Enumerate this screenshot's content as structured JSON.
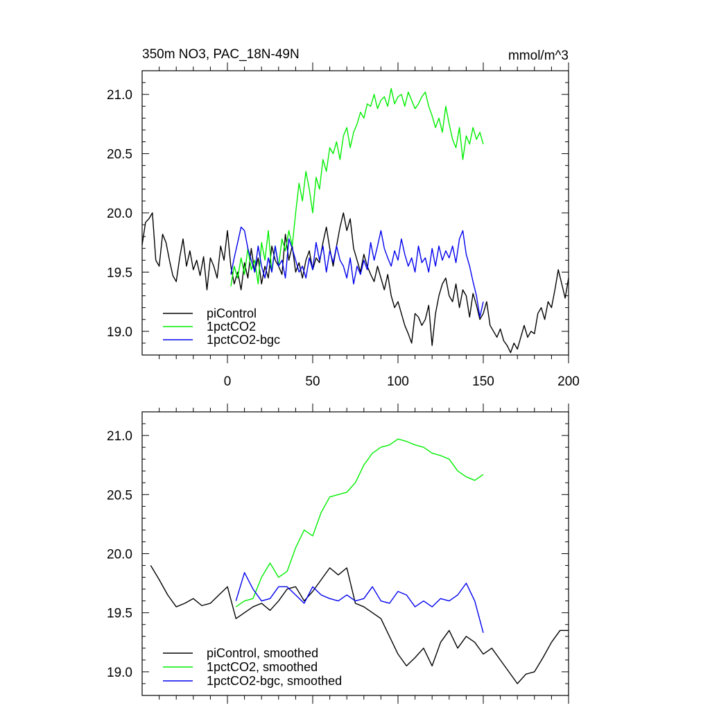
{
  "chart_data": [
    {
      "type": "line",
      "title": "350m NO3, PAC_18N-49N",
      "title_right": "mmol/m^3",
      "xlabel": "",
      "ylabel": "",
      "xlim": [
        -50,
        200
      ],
      "ylim": [
        18.8,
        21.2
      ],
      "x_ticks": [
        0,
        50,
        100,
        150,
        200
      ],
      "x_tick_labels": [
        "0",
        "50",
        "100",
        "150",
        "200"
      ],
      "y_ticks": [
        19.0,
        19.5,
        20.0,
        20.5,
        21.0
      ],
      "y_tick_labels": [
        "19.0",
        "19.5",
        "20.0",
        "20.5",
        "21.0"
      ],
      "legend_position": "bottom-left",
      "series": [
        {
          "name": "piControl",
          "color": "#000000",
          "x": [
            -50,
            -48,
            -46,
            -44,
            -42,
            -40,
            -38,
            -36,
            -34,
            -32,
            -30,
            -28,
            -26,
            -24,
            -22,
            -20,
            -18,
            -16,
            -14,
            -12,
            -10,
            -8,
            -6,
            -4,
            -2,
            0,
            2,
            4,
            6,
            8,
            10,
            12,
            14,
            16,
            18,
            20,
            22,
            24,
            26,
            28,
            30,
            32,
            34,
            36,
            38,
            40,
            42,
            44,
            46,
            48,
            50,
            52,
            54,
            56,
            58,
            60,
            62,
            64,
            66,
            68,
            70,
            72,
            74,
            76,
            78,
            80,
            82,
            84,
            86,
            88,
            90,
            92,
            94,
            96,
            98,
            100,
            102,
            104,
            106,
            108,
            110,
            112,
            114,
            116,
            118,
            120,
            122,
            124,
            126,
            128,
            130,
            132,
            134,
            136,
            138,
            140,
            142,
            144,
            146,
            148,
            150,
            152,
            154,
            156,
            158,
            160,
            162,
            164,
            166,
            168,
            170,
            172,
            174,
            176,
            178,
            180,
            182,
            184,
            186,
            188,
            190,
            192,
            194,
            196,
            198,
            200
          ],
          "values": [
            19.73,
            19.92,
            19.95,
            20.0,
            19.6,
            19.55,
            19.82,
            19.75,
            19.6,
            19.47,
            19.42,
            19.62,
            19.78,
            19.55,
            19.68,
            19.52,
            19.6,
            19.47,
            19.63,
            19.35,
            19.62,
            19.55,
            19.45,
            19.72,
            19.6,
            19.85,
            19.55,
            19.4,
            19.5,
            19.35,
            19.58,
            19.45,
            19.7,
            19.5,
            19.62,
            19.4,
            19.55,
            19.45,
            19.72,
            19.6,
            19.55,
            19.48,
            19.82,
            19.6,
            19.72,
            19.5,
            19.58,
            19.45,
            19.6,
            19.68,
            19.52,
            19.62,
            19.58,
            19.75,
            19.88,
            19.7,
            19.55,
            19.72,
            19.88,
            20.0,
            19.85,
            19.95,
            19.7,
            19.6,
            19.5,
            19.65,
            19.55,
            19.48,
            19.42,
            19.55,
            19.45,
            19.35,
            19.48,
            19.3,
            19.2,
            19.25,
            19.15,
            19.05,
            18.98,
            18.9,
            19.15,
            19.12,
            19.05,
            19.1,
            19.22,
            18.88,
            19.15,
            19.3,
            19.4,
            19.45,
            19.3,
            19.25,
            19.4,
            19.2,
            19.35,
            19.3,
            19.12,
            19.32,
            19.22,
            19.1,
            19.15,
            19.25,
            19.05,
            19.0,
            18.95,
            19.02,
            18.92,
            18.88,
            18.82,
            18.9,
            18.85,
            18.95,
            19.05,
            18.95,
            19.0,
            18.98,
            19.15,
            19.2,
            19.1,
            19.25,
            19.2,
            19.35,
            19.52,
            19.4,
            19.28,
            19.45
          ]
        },
        {
          "name": "1pctCO2",
          "color": "#00ee00",
          "x": [
            2,
            4,
            6,
            8,
            10,
            12,
            14,
            16,
            18,
            20,
            22,
            24,
            26,
            28,
            30,
            32,
            34,
            36,
            38,
            40,
            42,
            44,
            46,
            48,
            50,
            52,
            54,
            56,
            58,
            60,
            62,
            64,
            66,
            68,
            70,
            72,
            74,
            76,
            78,
            80,
            82,
            84,
            86,
            88,
            90,
            92,
            94,
            96,
            98,
            100,
            102,
            104,
            106,
            108,
            110,
            112,
            114,
            116,
            118,
            120,
            122,
            124,
            126,
            128,
            130,
            132,
            134,
            136,
            138,
            140,
            142,
            144,
            146,
            148,
            150
          ],
          "values": [
            19.38,
            19.55,
            19.45,
            19.62,
            19.48,
            19.7,
            19.52,
            19.6,
            19.4,
            19.75,
            19.6,
            19.85,
            19.5,
            19.72,
            19.55,
            19.78,
            19.68,
            19.85,
            19.72,
            20.0,
            20.25,
            20.1,
            20.35,
            20.2,
            20.0,
            20.3,
            20.2,
            20.45,
            20.35,
            20.55,
            20.5,
            20.6,
            20.45,
            20.65,
            20.72,
            20.55,
            20.68,
            20.75,
            20.85,
            20.8,
            20.92,
            20.9,
            21.0,
            20.88,
            20.95,
            20.98,
            20.9,
            21.05,
            20.92,
            20.98,
            21.0,
            20.9,
            21.02,
            20.95,
            20.88,
            20.92,
            20.98,
            21.02,
            20.9,
            20.82,
            20.72,
            20.8,
            20.68,
            20.9,
            20.75,
            20.62,
            20.55,
            20.72,
            20.45,
            20.65,
            20.58,
            20.72,
            20.62,
            20.68,
            20.58
          ]
        },
        {
          "name": "1pctCO2-bgc",
          "color": "#0000ee",
          "x": [
            2,
            4,
            6,
            8,
            10,
            12,
            14,
            16,
            18,
            20,
            22,
            24,
            26,
            28,
            30,
            32,
            34,
            36,
            38,
            40,
            42,
            44,
            46,
            48,
            50,
            52,
            54,
            56,
            58,
            60,
            62,
            64,
            66,
            68,
            70,
            72,
            74,
            76,
            78,
            80,
            82,
            84,
            86,
            88,
            90,
            92,
            94,
            96,
            98,
            100,
            102,
            104,
            106,
            108,
            110,
            112,
            114,
            116,
            118,
            120,
            122,
            124,
            126,
            128,
            130,
            132,
            134,
            136,
            138,
            140,
            142,
            144,
            146,
            148,
            150
          ],
          "values": [
            19.48,
            19.62,
            19.75,
            19.88,
            19.85,
            19.7,
            19.6,
            19.5,
            19.72,
            19.55,
            19.45,
            19.62,
            19.5,
            19.72,
            19.55,
            19.6,
            19.45,
            19.78,
            19.7,
            19.6,
            19.5,
            19.55,
            19.45,
            19.62,
            19.52,
            19.75,
            19.6,
            19.72,
            19.5,
            19.68,
            19.58,
            19.72,
            19.6,
            19.55,
            19.45,
            19.62,
            19.4,
            19.55,
            19.48,
            19.6,
            19.52,
            19.75,
            19.6,
            19.72,
            19.85,
            19.7,
            19.62,
            19.55,
            19.68,
            19.6,
            19.78,
            19.65,
            19.55,
            19.62,
            19.5,
            19.72,
            19.58,
            19.62,
            19.5,
            19.7,
            19.55,
            19.72,
            19.6,
            19.68,
            19.62,
            19.72,
            19.58,
            19.78,
            19.85,
            19.65,
            19.55,
            19.42,
            19.3,
            19.12,
            19.25
          ]
        }
      ]
    },
    {
      "type": "line",
      "title": "",
      "xlabel": "",
      "ylabel": "",
      "xlim": [
        -50,
        200
      ],
      "ylim": [
        18.8,
        21.2
      ],
      "y_ticks": [
        19.0,
        19.5,
        20.0,
        20.5,
        21.0
      ],
      "y_tick_labels": [
        "19.0",
        "19.5",
        "20.0",
        "20.5",
        "21.0"
      ],
      "legend_position": "bottom-left",
      "series": [
        {
          "name": "piControl, smoothed",
          "color": "#000000",
          "x": [
            -45,
            -40,
            -35,
            -30,
            -25,
            -20,
            -15,
            -10,
            -5,
            0,
            5,
            10,
            15,
            20,
            25,
            30,
            35,
            40,
            45,
            50,
            55,
            60,
            65,
            70,
            75,
            80,
            85,
            90,
            95,
            100,
            105,
            110,
            115,
            120,
            125,
            130,
            135,
            140,
            145,
            150,
            155,
            160,
            165,
            170,
            175,
            180,
            185,
            190,
            195,
            200
          ],
          "values": [
            19.9,
            19.78,
            19.65,
            19.55,
            19.58,
            19.62,
            19.56,
            19.58,
            19.65,
            19.72,
            19.45,
            19.5,
            19.55,
            19.58,
            19.52,
            19.6,
            19.7,
            19.72,
            19.6,
            19.68,
            19.78,
            19.88,
            19.82,
            19.88,
            19.58,
            19.55,
            19.5,
            19.45,
            19.3,
            19.15,
            19.05,
            19.12,
            19.2,
            19.05,
            19.25,
            19.35,
            19.2,
            19.3,
            19.25,
            19.15,
            19.2,
            19.1,
            19.0,
            18.9,
            18.98,
            19.0,
            19.12,
            19.25,
            19.35,
            19.35
          ]
        },
        {
          "name": "1pctCO2, smoothed",
          "color": "#00ee00",
          "x": [
            5,
            10,
            15,
            20,
            25,
            30,
            35,
            40,
            45,
            50,
            55,
            60,
            65,
            70,
            75,
            80,
            85,
            90,
            95,
            100,
            105,
            110,
            115,
            120,
            125,
            130,
            135,
            140,
            145,
            150
          ],
          "values": [
            19.55,
            19.6,
            19.62,
            19.8,
            19.92,
            19.8,
            19.85,
            20.05,
            20.2,
            20.15,
            20.35,
            20.48,
            20.5,
            20.52,
            20.6,
            20.75,
            20.85,
            20.9,
            20.92,
            20.97,
            20.95,
            20.92,
            20.9,
            20.85,
            20.83,
            20.8,
            20.7,
            20.65,
            20.62,
            20.67
          ]
        },
        {
          "name": "1pctCO2-bgc, smoothed",
          "color": "#0000ee",
          "x": [
            5,
            10,
            15,
            20,
            25,
            30,
            35,
            40,
            45,
            50,
            55,
            60,
            65,
            70,
            75,
            80,
            85,
            90,
            95,
            100,
            105,
            110,
            115,
            120,
            125,
            130,
            135,
            140,
            145,
            150
          ],
          "values": [
            19.6,
            19.84,
            19.7,
            19.6,
            19.62,
            19.72,
            19.72,
            19.65,
            19.58,
            19.72,
            19.65,
            19.62,
            19.6,
            19.65,
            19.6,
            19.62,
            19.72,
            19.6,
            19.58,
            19.68,
            19.65,
            19.55,
            19.6,
            19.55,
            19.62,
            19.6,
            19.65,
            19.75,
            19.6,
            19.33
          ]
        }
      ]
    }
  ]
}
